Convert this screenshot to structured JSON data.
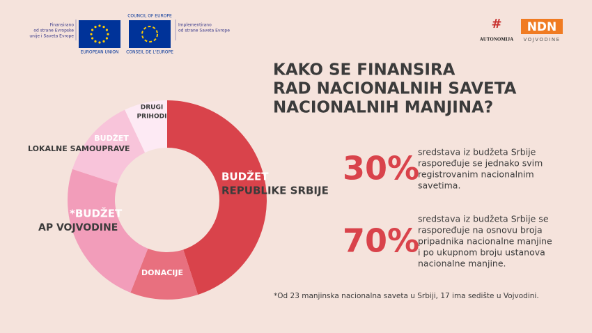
{
  "header": {
    "funded_by": [
      "Finansirano",
      "od strane Evropske",
      "unije i Saveta Evrope"
    ],
    "eu": "EUROPEAN UNION",
    "coe_top": "COUNCIL OF EUROPE",
    "coe_bottom": "CONSEIL DE L'EUROPE",
    "implemented_by": [
      "Implementirano",
      "od strane Saveta Evrope"
    ],
    "autonomija": "AUTONOMIJA",
    "ndn": "NDN",
    "ndn_sub": "VOJVODINE"
  },
  "title": [
    "KAKO SE FINANSIRA",
    "RAD NACIONALNIH SAVETA",
    "NACIONALNIH MANJINA?"
  ],
  "chart_data": {
    "type": "pie",
    "categories": [
      [
        "BUDŽET",
        "REPUBLIKE SRBIJE"
      ],
      [
        "DONACIJE"
      ],
      [
        "*BUDŽET",
        "AP VOJVODINE"
      ],
      [
        "BUDŽET",
        "LOKALNE SAMOUPRAVE"
      ],
      [
        "DRUGI",
        "PRIHODI"
      ]
    ],
    "values": [
      45,
      11,
      24,
      13,
      7
    ],
    "colors": [
      "#d9434b",
      "#e8707f",
      "#f29dba",
      "#f8c4da",
      "#fdeaf4"
    ]
  },
  "stats": [
    {
      "figure": "30%",
      "text": [
        "sredstava iz budžeta Srbije",
        "raspoređuje se jednako svim",
        "registrovanim nacionalnim",
        "savetima."
      ]
    },
    {
      "figure": "70%",
      "text": [
        "sredstava iz budžeta Srbije se",
        "raspoređuje na osnovu broja",
        "pripadnika nacionalne manjine",
        "i po ukupnom broju ustanova",
        "nacionalne manjine."
      ]
    }
  ],
  "footnote": "*Od 23 manjinska nacionalna saveta u Srbiji, 17 ima sedište u Vojvodini."
}
